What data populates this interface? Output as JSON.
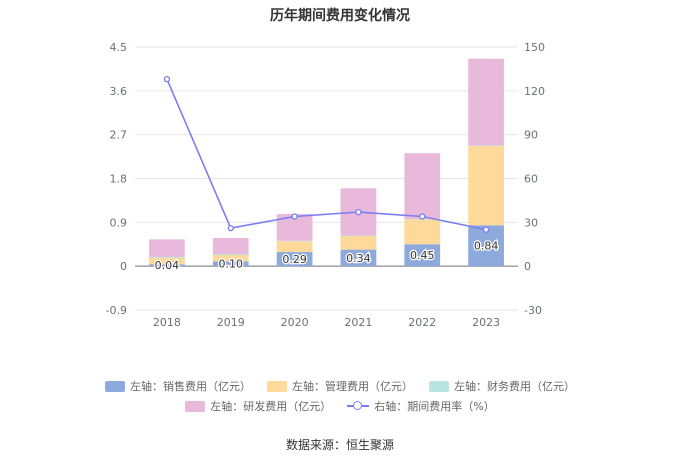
{
  "chart_data": {
    "type": "bar",
    "title": "历年期间费用变化情况",
    "categories": [
      "2018",
      "2019",
      "2020",
      "2021",
      "2022",
      "2023"
    ],
    "stacked": true,
    "left_axis": {
      "ticks": [
        "4.5",
        "3.6",
        "2.7",
        "1.8",
        "0.9",
        "0",
        "-0.9"
      ],
      "ylim": [
        -0.9,
        4.5
      ]
    },
    "right_axis": {
      "ticks": [
        "150",
        "120",
        "90",
        "60",
        "30",
        "0",
        "-30"
      ],
      "ylim": [
        -30,
        150
      ]
    },
    "series": [
      {
        "name": "左轴：销售费用（亿元）",
        "type": "bar",
        "axis": "left",
        "color": "#8eaadc",
        "values": [
          0.04,
          0.1,
          0.29,
          0.34,
          0.45,
          0.84
        ],
        "show_labels": true
      },
      {
        "name": "左轴：管理费用（亿元）",
        "type": "bar",
        "axis": "left",
        "color": "#ffd99a",
        "values": [
          0.13,
          0.13,
          0.22,
          0.28,
          0.51,
          1.63
        ],
        "show_labels": false
      },
      {
        "name": "左轴：财务费用（亿元）",
        "type": "bar",
        "axis": "left",
        "color": "#b8e4e3",
        "values": [
          0.02,
          0.02,
          0.01,
          0.01,
          0.01,
          0.01
        ],
        "show_labels": false
      },
      {
        "name": "左轴：研发费用（亿元）",
        "type": "bar",
        "axis": "left",
        "color": "#e8b9da",
        "values": [
          0.36,
          0.33,
          0.55,
          0.97,
          1.35,
          1.78
        ],
        "show_labels": false
      },
      {
        "name": "右轴：期间费用率（%）",
        "type": "line",
        "axis": "right",
        "color": "#7b7ef3",
        "values": [
          128,
          26,
          34,
          37,
          34,
          25
        ]
      }
    ],
    "legend_placement": "bottom",
    "grid": true
  },
  "source": "数据来源：恒生聚源"
}
